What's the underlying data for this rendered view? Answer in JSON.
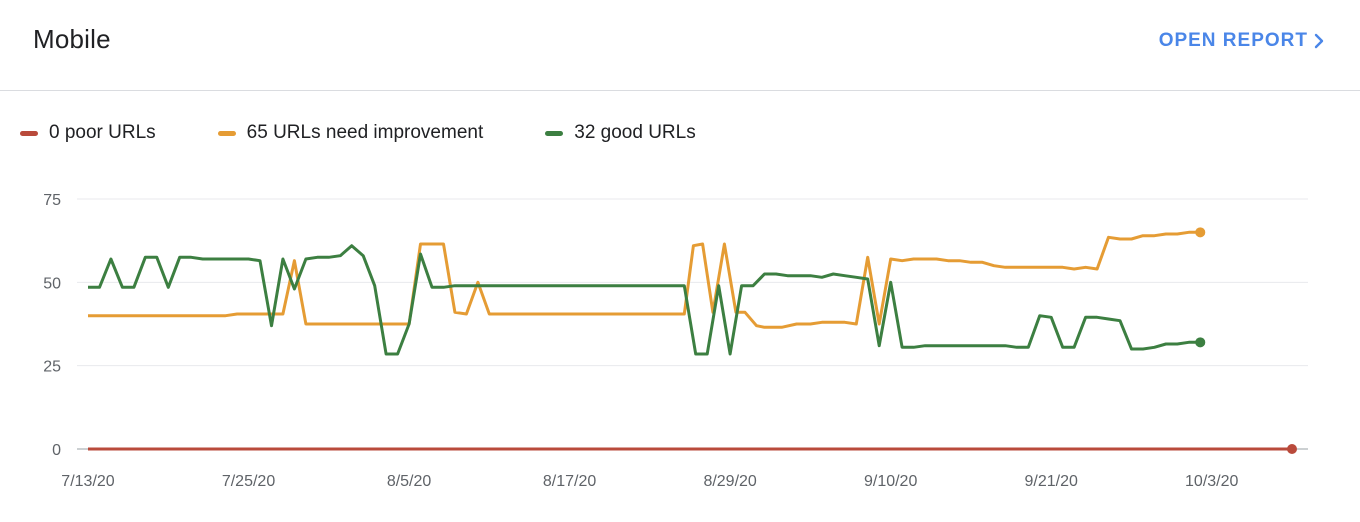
{
  "header": {
    "title": "Mobile",
    "open_report_label": "OPEN REPORT"
  },
  "legend": [
    {
      "label": "0 poor URLs",
      "color": "#b94a3b"
    },
    {
      "label": "65 URLs need improvement",
      "color": "#e59c34"
    },
    {
      "label": "32 good URLs",
      "color": "#3c7f41"
    }
  ],
  "chart_data": {
    "type": "line",
    "ylim": [
      0,
      75
    ],
    "yticks": [
      0,
      25,
      50,
      75
    ],
    "xlim": [
      0,
      105
    ],
    "xticks": [
      {
        "label": "7/13/20",
        "x": 0
      },
      {
        "label": "7/25/20",
        "x": 14
      },
      {
        "label": "8/5/20",
        "x": 28
      },
      {
        "label": "8/17/20",
        "x": 42
      },
      {
        "label": "8/29/20",
        "x": 56
      },
      {
        "label": "9/10/20",
        "x": 70
      },
      {
        "label": "9/21/20",
        "x": 84
      },
      {
        "label": "10/3/20",
        "x": 98
      }
    ],
    "grid": true,
    "legend_position": "top-left",
    "series": [
      {
        "name": "0 poor URLs",
        "color": "#b94a3b",
        "points": [
          [
            0,
            0
          ],
          [
            105,
            0
          ]
        ]
      },
      {
        "name": "65 URLs need improvement",
        "color": "#e59c34",
        "points": [
          [
            0,
            40
          ],
          [
            12,
            40
          ],
          [
            13,
            40.5
          ],
          [
            17,
            40.5
          ],
          [
            18,
            56.5
          ],
          [
            19,
            37.5
          ],
          [
            28,
            37.5
          ],
          [
            29,
            61.5
          ],
          [
            31,
            61.5
          ],
          [
            32,
            41
          ],
          [
            33,
            40.5
          ],
          [
            34,
            50
          ],
          [
            35,
            40.5
          ],
          [
            52,
            40.5
          ],
          [
            52.8,
            61
          ],
          [
            53.6,
            61.5
          ],
          [
            54.5,
            41
          ],
          [
            55.5,
            61.5
          ],
          [
            56.5,
            41
          ],
          [
            57.3,
            41
          ],
          [
            58.3,
            37
          ],
          [
            59,
            36.5
          ],
          [
            60.5,
            36.5
          ],
          [
            61.8,
            37.5
          ],
          [
            63,
            37.5
          ],
          [
            64,
            38
          ],
          [
            65,
            38
          ],
          [
            66,
            38
          ],
          [
            67,
            37.5
          ],
          [
            68,
            57.5
          ],
          [
            69,
            37.5
          ],
          [
            70,
            57
          ],
          [
            71,
            56.5
          ],
          [
            72,
            57
          ],
          [
            74,
            57
          ],
          [
            75,
            56.5
          ],
          [
            76,
            56.5
          ],
          [
            77,
            56
          ],
          [
            78,
            56
          ],
          [
            79,
            55
          ],
          [
            80,
            54.5
          ],
          [
            85,
            54.5
          ],
          [
            86,
            54
          ],
          [
            87,
            54.5
          ],
          [
            88,
            54
          ],
          [
            89,
            63.5
          ],
          [
            90,
            63
          ],
          [
            91,
            63
          ],
          [
            92,
            64
          ],
          [
            93,
            64
          ],
          [
            94,
            64.5
          ],
          [
            95,
            64.5
          ],
          [
            96,
            65
          ],
          [
            97,
            65
          ]
        ]
      },
      {
        "name": "32 good URLs",
        "color": "#3c7f41",
        "points": [
          [
            0,
            48.5
          ],
          [
            1,
            48.5
          ],
          [
            2,
            57
          ],
          [
            3,
            48.5
          ],
          [
            4,
            48.5
          ],
          [
            5,
            57.5
          ],
          [
            6,
            57.5
          ],
          [
            7,
            48.5
          ],
          [
            8,
            57.5
          ],
          [
            9,
            57.5
          ],
          [
            10,
            57
          ],
          [
            14,
            57
          ],
          [
            15,
            56.5
          ],
          [
            16,
            37
          ],
          [
            17,
            57
          ],
          [
            18,
            48
          ],
          [
            19,
            57
          ],
          [
            20,
            57.5
          ],
          [
            21,
            57.5
          ],
          [
            22,
            58
          ],
          [
            23,
            61
          ],
          [
            24,
            58
          ],
          [
            25,
            49
          ],
          [
            26,
            28.5
          ],
          [
            27,
            28.5
          ],
          [
            28,
            37.5
          ],
          [
            29,
            58.5
          ],
          [
            30,
            48.5
          ],
          [
            31,
            48.5
          ],
          [
            32,
            49
          ],
          [
            52,
            49
          ],
          [
            53,
            28.5
          ],
          [
            54,
            28.5
          ],
          [
            55,
            49
          ],
          [
            56,
            28.5
          ],
          [
            57,
            49
          ],
          [
            58,
            49
          ],
          [
            59,
            52.5
          ],
          [
            60,
            52.5
          ],
          [
            61,
            52
          ],
          [
            63,
            52
          ],
          [
            64,
            51.5
          ],
          [
            65,
            52.5
          ],
          [
            66,
            52
          ],
          [
            67,
            51.5
          ],
          [
            68,
            51
          ],
          [
            69,
            31
          ],
          [
            70,
            50
          ],
          [
            71,
            30.5
          ],
          [
            72,
            30.5
          ],
          [
            73,
            31
          ],
          [
            80,
            31
          ],
          [
            81,
            30.5
          ],
          [
            82,
            30.5
          ],
          [
            83,
            40
          ],
          [
            84,
            39.5
          ],
          [
            85,
            30.5
          ],
          [
            86,
            30.5
          ],
          [
            87,
            39.5
          ],
          [
            88,
            39.5
          ],
          [
            89,
            39
          ],
          [
            90,
            38.5
          ],
          [
            91,
            30
          ],
          [
            92,
            30
          ],
          [
            93,
            30.5
          ],
          [
            94,
            31.5
          ],
          [
            95,
            31.5
          ],
          [
            96,
            32
          ],
          [
            97,
            32
          ]
        ]
      }
    ]
  }
}
